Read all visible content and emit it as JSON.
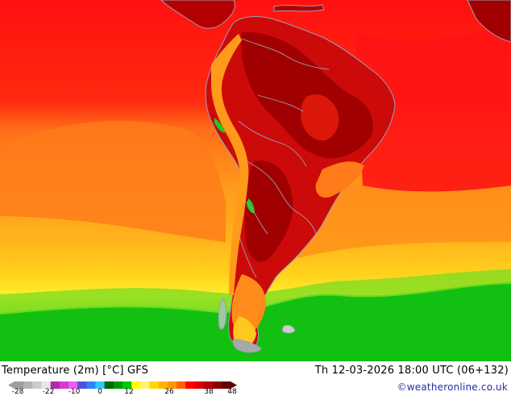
{
  "title": "Temperature (2m) [°C] GFS",
  "valid_time": "Th 12-03-2026 18:00 UTC (06+132)",
  "credit": "©weatheronline.co.uk",
  "legend": {
    "ticks": [
      "-28",
      "-22",
      "-10",
      "0",
      "12",
      "26",
      "38",
      "48"
    ],
    "colors": [
      "#9e9e9e",
      "#b4b4b4",
      "#cccccc",
      "#e6e6e6",
      "#b02ab0",
      "#d23cd2",
      "#f05af0",
      "#5050e6",
      "#2d86f0",
      "#32c8ff",
      "#006400",
      "#009600",
      "#00c800",
      "#ffff00",
      "#fff080",
      "#ffd700",
      "#ffb400",
      "#ff9600",
      "#ff6400",
      "#ff0000",
      "#dc0000",
      "#b40000",
      "#8c0000",
      "#640000"
    ]
  },
  "colors": {
    "hot": "#ff1a1a",
    "very_hot": "#b40000",
    "warm": "#ff8c1a",
    "mild": "#ffc21a",
    "cool": "#1fd21f",
    "land_border": "#9aa0b4"
  }
}
